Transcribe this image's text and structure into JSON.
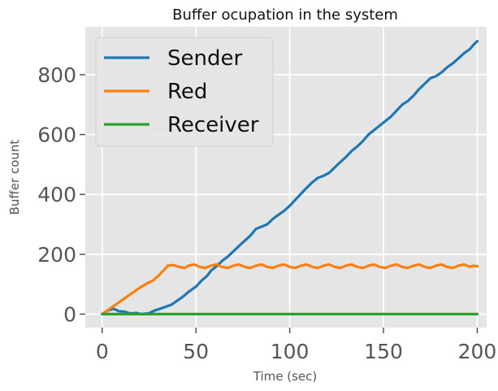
{
  "chart_data": {
    "type": "line",
    "title": "Buffer ocupation in the system",
    "xlabel": "Time (sec)",
    "ylabel": "Buffer count",
    "xlim": [
      -9,
      205
    ],
    "ylim": [
      -45,
      960
    ],
    "xticks": [
      0,
      50,
      100,
      150,
      200
    ],
    "yticks": [
      0,
      200,
      400,
      600,
      800
    ],
    "grid": true,
    "legend_position": "upper-left",
    "series": [
      {
        "name": "Sender",
        "color": "#1f77b4",
        "points": [
          [
            0,
            0
          ],
          [
            3,
            12
          ],
          [
            6,
            18
          ],
          [
            9,
            10
          ],
          [
            12,
            8
          ],
          [
            15,
            2
          ],
          [
            18,
            4
          ],
          [
            21,
            0
          ],
          [
            25,
            3
          ],
          [
            28,
            12
          ],
          [
            31,
            18
          ],
          [
            34,
            25
          ],
          [
            37,
            32
          ],
          [
            40,
            45
          ],
          [
            43,
            58
          ],
          [
            46,
            74
          ],
          [
            50,
            92
          ],
          [
            53,
            112
          ],
          [
            56,
            128
          ],
          [
            58,
            145
          ],
          [
            61,
            160
          ],
          [
            64,
            178
          ],
          [
            67,
            192
          ],
          [
            70,
            210
          ],
          [
            73,
            228
          ],
          [
            76,
            245
          ],
          [
            79,
            262
          ],
          [
            82,
            285
          ],
          [
            85,
            292
          ],
          [
            88,
            300
          ],
          [
            91,
            318
          ],
          [
            94,
            332
          ],
          [
            97,
            345
          ],
          [
            100,
            362
          ],
          [
            103,
            382
          ],
          [
            106,
            402
          ],
          [
            109,
            422
          ],
          [
            112,
            440
          ],
          [
            115,
            455
          ],
          [
            118,
            462
          ],
          [
            121,
            472
          ],
          [
            124,
            490
          ],
          [
            127,
            508
          ],
          [
            130,
            525
          ],
          [
            133,
            545
          ],
          [
            136,
            560
          ],
          [
            139,
            578
          ],
          [
            142,
            600
          ],
          [
            145,
            615
          ],
          [
            148,
            630
          ],
          [
            151,
            645
          ],
          [
            154,
            660
          ],
          [
            157,
            680
          ],
          [
            160,
            700
          ],
          [
            163,
            712
          ],
          [
            166,
            730
          ],
          [
            169,
            752
          ],
          [
            172,
            770
          ],
          [
            175,
            788
          ],
          [
            178,
            795
          ],
          [
            181,
            808
          ],
          [
            184,
            825
          ],
          [
            187,
            838
          ],
          [
            190,
            855
          ],
          [
            193,
            872
          ],
          [
            196,
            885
          ],
          [
            198,
            900
          ],
          [
            200,
            912
          ]
        ]
      },
      {
        "name": "Red",
        "color": "#ff7f0e",
        "points": [
          [
            0,
            0
          ],
          [
            5,
            22
          ],
          [
            10,
            44
          ],
          [
            15,
            66
          ],
          [
            20,
            88
          ],
          [
            24,
            103
          ],
          [
            27,
            112
          ],
          [
            30,
            128
          ],
          [
            33,
            148
          ],
          [
            35,
            162
          ],
          [
            38,
            164
          ],
          [
            41,
            158
          ],
          [
            44,
            154
          ],
          [
            46,
            162
          ],
          [
            49,
            166
          ],
          [
            52,
            158
          ],
          [
            55,
            154
          ],
          [
            58,
            162
          ],
          [
            61,
            166
          ],
          [
            64,
            158
          ],
          [
            67,
            154
          ],
          [
            70,
            162
          ],
          [
            73,
            166
          ],
          [
            76,
            158
          ],
          [
            79,
            154
          ],
          [
            82,
            162
          ],
          [
            85,
            166
          ],
          [
            88,
            158
          ],
          [
            91,
            154
          ],
          [
            94,
            162
          ],
          [
            97,
            166
          ],
          [
            100,
            158
          ],
          [
            103,
            154
          ],
          [
            106,
            162
          ],
          [
            109,
            166
          ],
          [
            112,
            158
          ],
          [
            115,
            154
          ],
          [
            118,
            162
          ],
          [
            121,
            166
          ],
          [
            124,
            158
          ],
          [
            127,
            154
          ],
          [
            130,
            162
          ],
          [
            133,
            166
          ],
          [
            136,
            158
          ],
          [
            139,
            154
          ],
          [
            142,
            162
          ],
          [
            145,
            166
          ],
          [
            148,
            158
          ],
          [
            151,
            154
          ],
          [
            154,
            162
          ],
          [
            157,
            166
          ],
          [
            160,
            158
          ],
          [
            163,
            154
          ],
          [
            166,
            162
          ],
          [
            169,
            166
          ],
          [
            172,
            158
          ],
          [
            175,
            154
          ],
          [
            178,
            162
          ],
          [
            181,
            166
          ],
          [
            184,
            158
          ],
          [
            187,
            154
          ],
          [
            190,
            162
          ],
          [
            193,
            166
          ],
          [
            196,
            158
          ],
          [
            198,
            162
          ],
          [
            200,
            160
          ]
        ]
      },
      {
        "name": "Receiver",
        "color": "#2ca02c",
        "points": [
          [
            0,
            0
          ],
          [
            200,
            0
          ]
        ]
      }
    ]
  }
}
